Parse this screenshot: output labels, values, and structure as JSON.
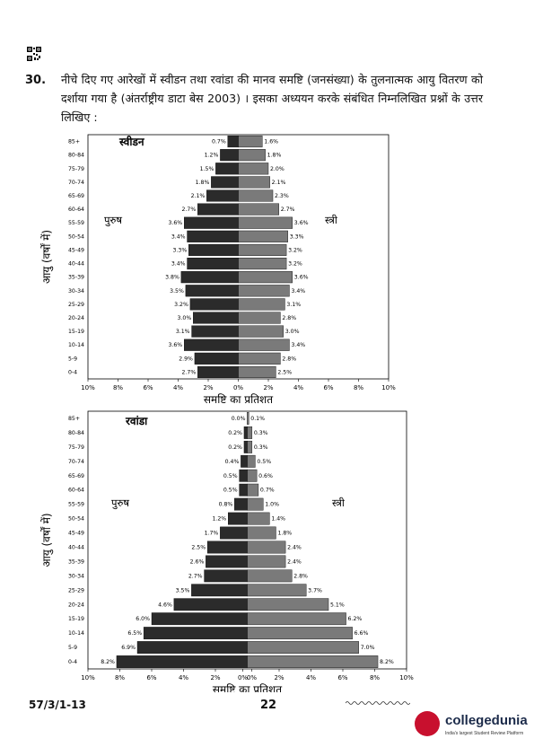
{
  "question": {
    "number": "30.",
    "text": "नीचे दिए गए आरेखों में स्वीडन तथा रवांडा की मानव समष्टि (जनसंख्या) के तुलनात्मक आयु वितरण को दर्शाया गया है (अंतर्राष्ट्रीय डाटा बेस 2003) । इसका अध्ययन करके संबंधित निम्नलिखित प्रश्नों के उत्तर लिखिए :"
  },
  "footer": {
    "code": "57/3/1-13",
    "page": "22"
  },
  "logo": {
    "name": "collegedunia",
    "tagline": "India's largest Student Review Platform"
  },
  "colors": {
    "male": "#2b2b2b",
    "female": "#7a7a7a"
  },
  "chart_data": [
    {
      "type": "bar",
      "orientation": "horizontal-population-pyramid",
      "title": "स्वीडन",
      "xlabel": "समष्टि का प्रतिशत",
      "ylabel": "आयु (वर्षों में)",
      "left_label": "पुरुष",
      "right_label": "स्त्री",
      "xlim": [
        -10,
        10
      ],
      "x_ticks": [
        "10%",
        "8%",
        "6%",
        "4%",
        "2%",
        "0%",
        "2%",
        "4%",
        "6%",
        "8%",
        "10%"
      ],
      "categories": [
        "85+",
        "80-84",
        "75-79",
        "70-74",
        "65-69",
        "60-64",
        "55-59",
        "50-54",
        "45-49",
        "40-44",
        "35-39",
        "30-34",
        "25-29",
        "20-24",
        "15-19",
        "10-14",
        "5-9",
        "0-4"
      ],
      "series": [
        {
          "name": "पुरुष",
          "values": [
            0.7,
            1.2,
            1.5,
            1.8,
            2.1,
            2.7,
            3.6,
            3.4,
            3.3,
            3.4,
            3.8,
            3.5,
            3.2,
            3.0,
            3.1,
            3.6,
            2.9,
            2.7
          ]
        },
        {
          "name": "स्त्री",
          "values": [
            1.6,
            1.8,
            2.0,
            2.1,
            2.3,
            2.7,
            3.6,
            3.3,
            3.2,
            3.2,
            3.6,
            3.4,
            3.1,
            2.8,
            3.0,
            3.4,
            2.8,
            2.5
          ]
        }
      ]
    },
    {
      "type": "bar",
      "orientation": "horizontal-population-pyramid",
      "title": "रवांडा",
      "xlabel": "समष्टि का प्रतिशत",
      "ylabel": "आयु (वर्षों में)",
      "left_label": "पुरुष",
      "right_label": "स्त्री",
      "xlim": [
        -10,
        10
      ],
      "x_ticks": [
        "10%",
        "8%",
        "6%",
        "4%",
        "2%",
        "0%",
        "0%",
        "2%",
        "4%",
        "6%",
        "8%",
        "10%"
      ],
      "categories": [
        "85+",
        "80-84",
        "75-79",
        "70-74",
        "65-69",
        "60-64",
        "55-59",
        "50-54",
        "45-49",
        "40-44",
        "35-39",
        "30-34",
        "25-29",
        "20-24",
        "15-19",
        "10-14",
        "5-9",
        "0-4"
      ],
      "series": [
        {
          "name": "पुरुष",
          "values": [
            0.0,
            0.2,
            0.2,
            0.4,
            0.5,
            0.5,
            0.8,
            1.2,
            1.7,
            2.5,
            2.6,
            2.7,
            3.5,
            4.6,
            6.0,
            6.5,
            6.9,
            8.2
          ]
        },
        {
          "name": "स्त्री",
          "values": [
            0.1,
            0.3,
            0.3,
            0.5,
            0.6,
            0.7,
            1.0,
            1.4,
            1.8,
            2.4,
            2.4,
            2.8,
            3.7,
            5.1,
            6.2,
            6.6,
            7.0,
            8.2
          ]
        }
      ]
    }
  ]
}
